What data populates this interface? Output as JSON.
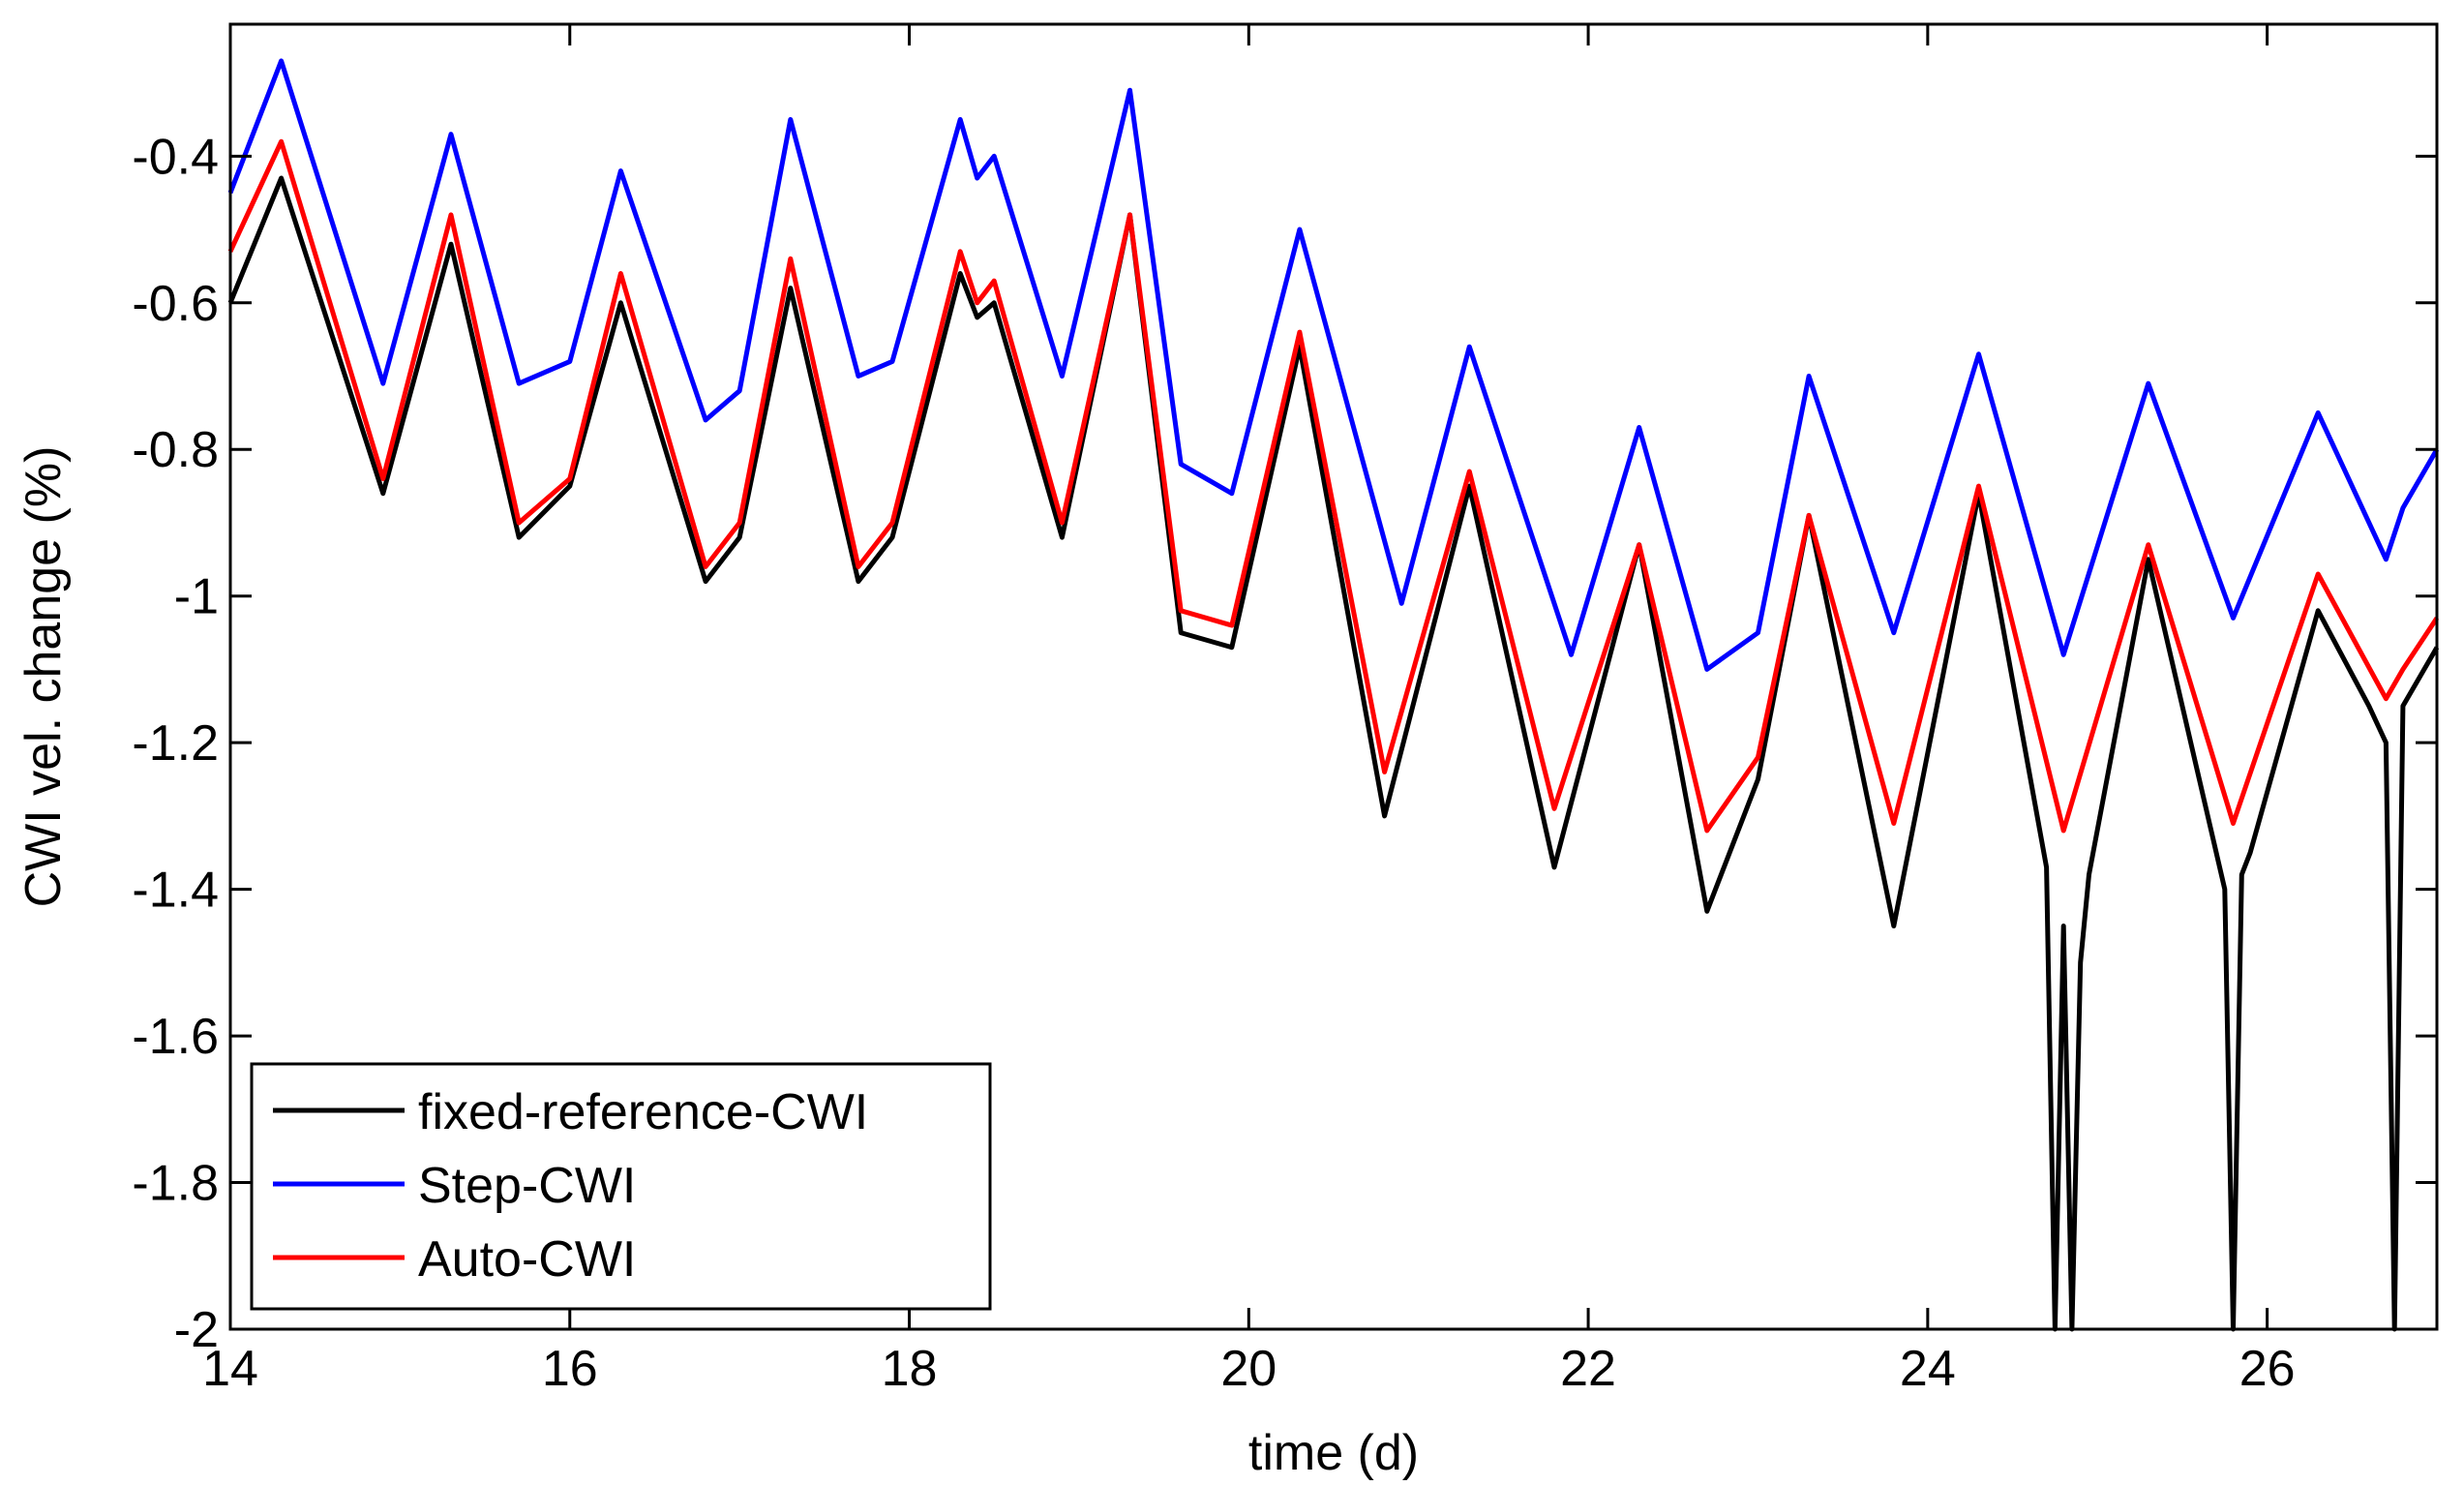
{
  "chart_data": {
    "type": "line",
    "xlabel": "time (d)",
    "ylabel": "CWI vel. change (%)",
    "xlim": [
      14,
      27
    ],
    "ylim": [
      -2,
      -0.22
    ],
    "xticks": [
      14,
      16,
      18,
      20,
      22,
      24,
      26
    ],
    "yticks": [
      -2,
      -1.8,
      -1.6,
      -1.4,
      -1.2,
      -1,
      -0.8,
      -0.6,
      -0.4
    ],
    "ytick_labels": [
      "-2",
      "-1.8",
      "-1.6",
      "-1.4",
      "-1.2",
      "-1",
      "-0.8",
      "-0.6",
      "-0.4"
    ],
    "grid": false,
    "legend_position": "bottom-left",
    "series": [
      {
        "name": "fixed-reference-CWI",
        "color": "#000000",
        "x": [
          14.0,
          14.3,
          14.9,
          15.3,
          15.7,
          16.0,
          16.3,
          16.8,
          17.0,
          17.3,
          17.7,
          17.9,
          18.3,
          18.4,
          18.5,
          18.9,
          19.3,
          19.6,
          19.9,
          20.3,
          20.8,
          21.3,
          21.8,
          22.3,
          22.7,
          23.0,
          23.3,
          23.8,
          24.3,
          24.7,
          24.75,
          24.8,
          24.85,
          24.9,
          24.95,
          25.3,
          25.75,
          25.8,
          25.85,
          25.9,
          26.3,
          26.6,
          26.7,
          26.75,
          26.8,
          27.0
        ],
        "y": [
          -0.6,
          -0.43,
          -0.86,
          -0.52,
          -0.92,
          -0.85,
          -0.6,
          -0.98,
          -0.92,
          -0.58,
          -0.98,
          -0.92,
          -0.56,
          -0.62,
          -0.6,
          -0.92,
          -0.48,
          -1.05,
          -1.07,
          -0.66,
          -1.3,
          -0.85,
          -1.37,
          -0.93,
          -1.43,
          -1.25,
          -0.89,
          -1.45,
          -0.86,
          -1.37,
          -2.0,
          -1.45,
          -2.0,
          -1.5,
          -1.38,
          -0.95,
          -1.4,
          -2.0,
          -1.38,
          -1.35,
          -1.02,
          -1.15,
          -1.2,
          -2.0,
          -1.15,
          -1.07
        ]
      },
      {
        "name": "Step-CWI",
        "color": "#0000ff",
        "x": [
          14.0,
          14.3,
          14.9,
          15.3,
          15.7,
          16.0,
          16.3,
          16.8,
          17.0,
          17.3,
          17.7,
          17.9,
          18.3,
          18.4,
          18.5,
          18.9,
          19.3,
          19.6,
          19.9,
          20.3,
          20.9,
          21.3,
          21.9,
          22.3,
          22.7,
          23.0,
          23.3,
          23.8,
          24.3,
          24.8,
          25.3,
          25.8,
          26.3,
          26.7,
          26.8,
          27.0
        ],
        "y": [
          -0.45,
          -0.27,
          -0.71,
          -0.37,
          -0.71,
          -0.68,
          -0.42,
          -0.76,
          -0.72,
          -0.35,
          -0.7,
          -0.68,
          -0.35,
          -0.43,
          -0.4,
          -0.7,
          -0.31,
          -0.82,
          -0.86,
          -0.5,
          -1.01,
          -0.66,
          -1.08,
          -0.77,
          -1.1,
          -1.05,
          -0.7,
          -1.05,
          -0.67,
          -1.08,
          -0.71,
          -1.03,
          -0.75,
          -0.95,
          -0.88,
          -0.8
        ]
      },
      {
        "name": "Auto-CWI",
        "color": "#ff0000",
        "x": [
          14.0,
          14.3,
          14.9,
          15.3,
          15.7,
          16.0,
          16.3,
          16.8,
          17.0,
          17.3,
          17.7,
          17.9,
          18.3,
          18.4,
          18.5,
          18.9,
          19.3,
          19.6,
          19.9,
          20.3,
          20.8,
          21.3,
          21.8,
          22.3,
          22.7,
          23.0,
          23.3,
          23.8,
          24.3,
          24.8,
          25.3,
          25.8,
          26.3,
          26.7,
          26.8,
          27.0
        ],
        "y": [
          -0.53,
          -0.38,
          -0.84,
          -0.48,
          -0.9,
          -0.84,
          -0.56,
          -0.96,
          -0.9,
          -0.54,
          -0.96,
          -0.9,
          -0.53,
          -0.6,
          -0.57,
          -0.9,
          -0.48,
          -1.02,
          -1.04,
          -0.64,
          -1.24,
          -0.83,
          -1.29,
          -0.93,
          -1.32,
          -1.22,
          -0.89,
          -1.31,
          -0.85,
          -1.32,
          -0.93,
          -1.31,
          -0.97,
          -1.14,
          -1.1,
          -1.03
        ]
      }
    ]
  }
}
